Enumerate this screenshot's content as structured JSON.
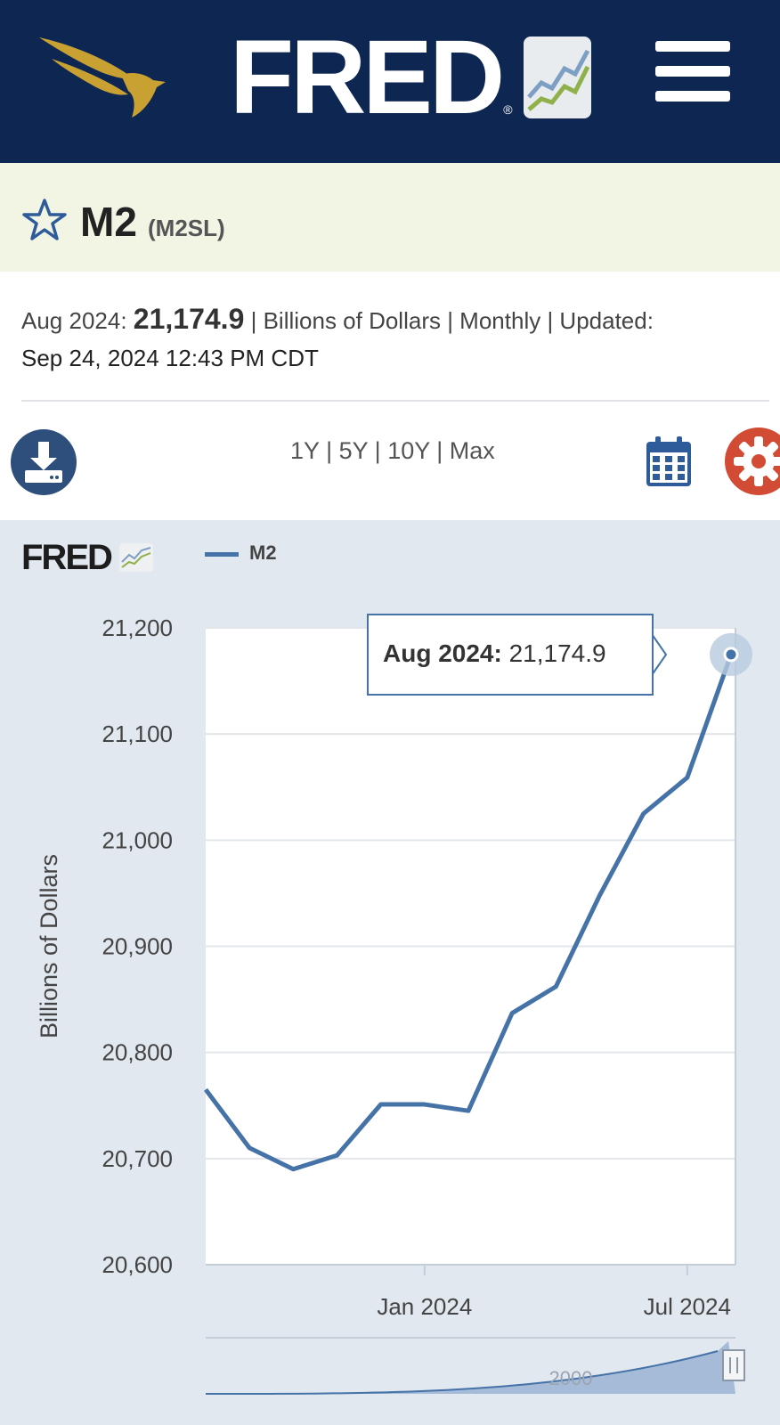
{
  "header": {
    "logo_text": "FRED",
    "registered_mark": "®",
    "menu_icon": "hamburger-menu-icon"
  },
  "series": {
    "name": "M2",
    "id": "(M2SL)",
    "latest_period": "Aug 2024:",
    "latest_value": "21,174.9",
    "units": "| Billions of Dollars | Monthly | Updated:",
    "updated": "Sep 24, 2024 12:43 PM CDT"
  },
  "toolbar": {
    "download_icon": "download-icon",
    "ranges": [
      "1Y",
      "5Y",
      "10Y",
      "Max"
    ],
    "separator": "|",
    "calendar_icon": "calendar-icon",
    "settings_icon": "gear-icon"
  },
  "chart_data": {
    "type": "line",
    "ylabel": "Billions of Dollars",
    "ylim": [
      20600,
      21200
    ],
    "yticks": [
      "20,600",
      "20,700",
      "20,800",
      "20,900",
      "21,000",
      "21,100",
      "21,200"
    ],
    "xtick_labels": [
      "Jan 2024",
      "Jul 2024"
    ],
    "series": [
      {
        "name": "M2",
        "color": "#4572a7",
        "x": [
          "2023-08",
          "2023-09",
          "2023-10",
          "2023-11",
          "2023-12",
          "2024-01",
          "2024-02",
          "2024-03",
          "2024-04",
          "2024-05",
          "2024-06",
          "2024-07",
          "2024-08"
        ],
        "values": [
          20765,
          20710,
          20690,
          20703,
          20751,
          20751,
          20745,
          20837,
          20862,
          20948,
          21025,
          21059,
          21174.9
        ]
      }
    ],
    "tooltip": {
      "period": "Aug 2024:",
      "value": "21,174.9"
    },
    "navigator_label": "2000"
  }
}
